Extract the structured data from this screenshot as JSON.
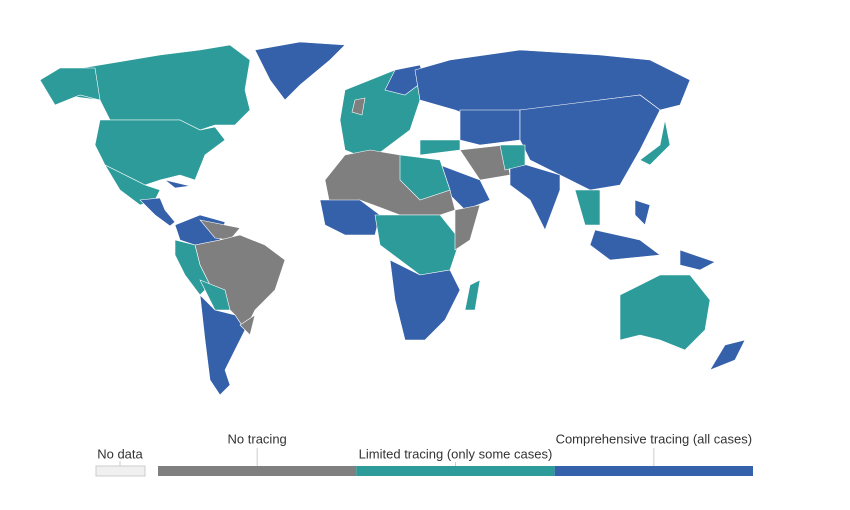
{
  "legend": {
    "no_data": {
      "label": "No data",
      "color": "#f0f0f0"
    },
    "items": [
      {
        "label": "No tracing",
        "color": "#7f7f7f"
      },
      {
        "label": "Limited tracing (only some cases)",
        "color": "#2e9b9b"
      },
      {
        "label": "Comprehensive tracing (all cases)",
        "color": "#3560aa"
      }
    ]
  }
}
